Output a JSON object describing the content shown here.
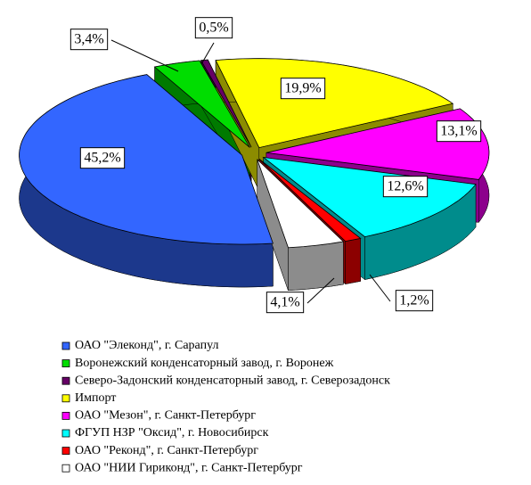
{
  "chart_data": {
    "type": "pie",
    "categories": [
      "ОАО \"Элеконд\", г. Сарапул",
      "Воронежский конденсаторный завод, г. Воронеж",
      "Северо-Задонский конденсаторный завод, г. Северозадонск",
      "Импорт",
      "ОАО \"Мезон\", г. Санкт-Петербург",
      "ФГУП НЗР \"Оксид\", г. Новосибирск",
      "ОАО \"Реконд\", г. Санкт-Петербург",
      "ОАО \"НИИ Гириконд\", г. Санкт-Петербург"
    ],
    "values": [
      45.2,
      3.4,
      0.5,
      19.9,
      13.1,
      12.6,
      1.2,
      4.1
    ],
    "value_labels": [
      "45,2%",
      "3,4%",
      "0,5%",
      "19,9%",
      "13,1%",
      "12,6%",
      "1,2%",
      "4,1%"
    ],
    "colors": [
      "#3366ff",
      "#00dd00",
      "#660066",
      "#ffff00",
      "#ff00ff",
      "#00ffff",
      "#ff0000",
      "#ffffff"
    ]
  }
}
